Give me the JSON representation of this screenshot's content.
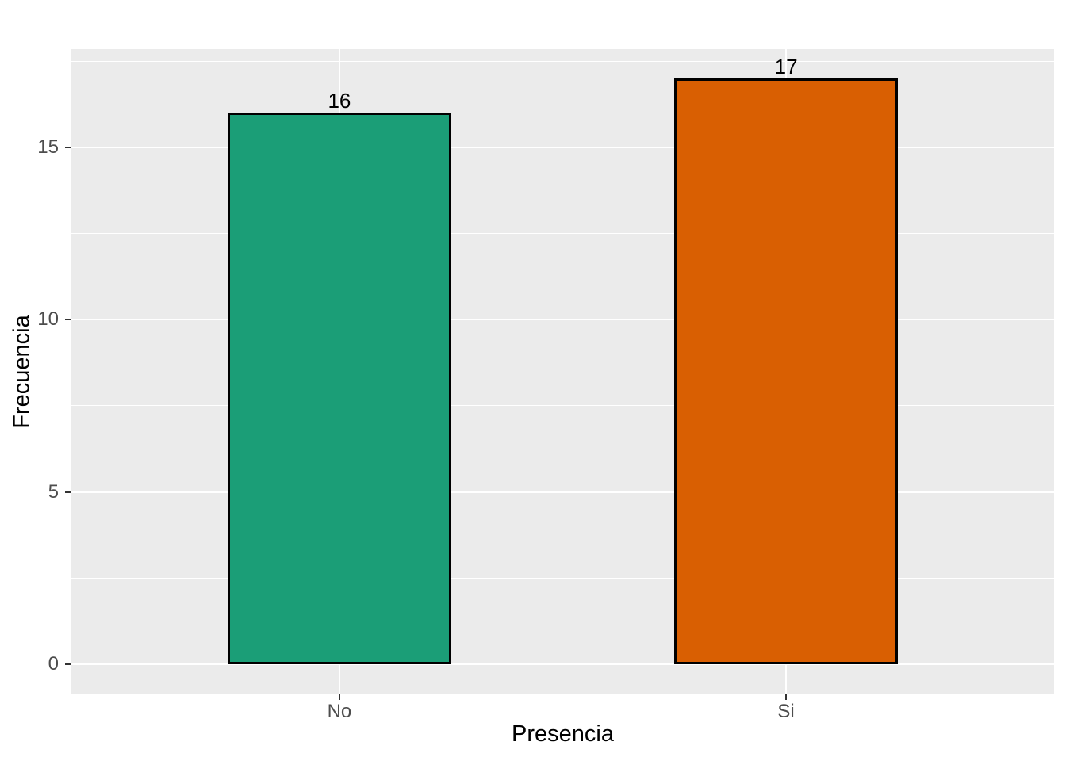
{
  "chart_data": {
    "type": "bar",
    "title": "",
    "categories": [
      "No",
      "Si"
    ],
    "values": [
      16,
      17
    ],
    "bar_labels": [
      "16",
      "17"
    ],
    "bar_colors": [
      "#1B9E77",
      "#D95F02"
    ],
    "bar_border_color": "#000000",
    "xlabel": "Presencia",
    "ylabel": "Frecuencia",
    "y_tick_labels": [
      "0",
      "5",
      "10",
      "15"
    ],
    "y_tick_values": [
      0,
      5,
      10,
      15
    ],
    "y_minor_tick_values": [
      2.5,
      7.5,
      12.5,
      17.5
    ],
    "ylim": [
      -0.85,
      17.85
    ],
    "grid": "major and minor horizontal, major vertical at category centers",
    "legend_position": "none",
    "panel_bg": "#EBEBEB",
    "grid_color": "#FFFFFF",
    "axis_tick_color": "#333333",
    "tick_label_color": "#4D4D4D",
    "axis_title_color": "#000000",
    "background": "#FFFFFF"
  }
}
